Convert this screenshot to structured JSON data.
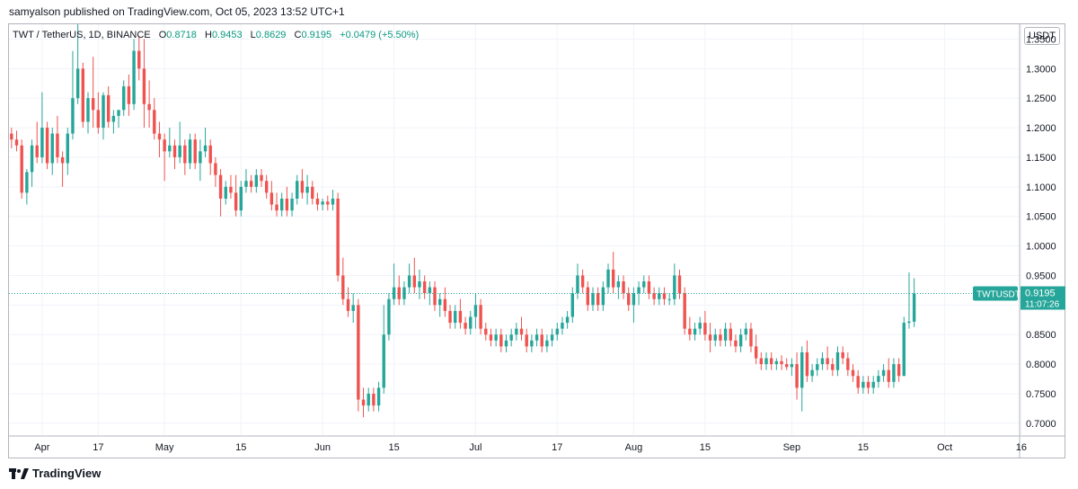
{
  "publisher_line": "samyalson published on TradingView.com, Oct 05, 2023 13:52 UTC+1",
  "legend": {
    "symbol": "TWT / TetherUS, 1D, BINANCE",
    "open_label": "O",
    "open": "0.8718",
    "high_label": "H",
    "high": "0.9453",
    "low_label": "L",
    "low": "0.8629",
    "close_label": "C",
    "close": "0.9195",
    "change": "+0.0479 (+5.50%)"
  },
  "currency": "USDT",
  "branding": "TradingView",
  "colors": {
    "up": "#26a69a",
    "down": "#ef5350",
    "grid": "#f0f3fa",
    "axis": "#b2b5be",
    "last_price": "#26a69a"
  },
  "chart_data": {
    "type": "candlestick",
    "symbol": "TWTUSDT",
    "last_price": "0.9195",
    "countdown": "11:07:26",
    "ylim": [
      0.68,
      1.375
    ],
    "y_ticks": [
      "1.3500",
      "1.3000",
      "1.2500",
      "1.2000",
      "1.1500",
      "1.1000",
      "1.0500",
      "1.0000",
      "0.9500",
      "0.9000",
      "0.8500",
      "0.8000",
      "0.7500",
      "0.7000"
    ],
    "x_ticks": [
      {
        "label": "Apr",
        "day": 6
      },
      {
        "label": "17",
        "day": 17
      },
      {
        "label": "May",
        "day": 30
      },
      {
        "label": "15",
        "day": 45
      },
      {
        "label": "Jun",
        "day": 61
      },
      {
        "label": "15",
        "day": 75
      },
      {
        "label": "Jul",
        "day": 91
      },
      {
        "label": "17",
        "day": 107
      },
      {
        "label": "Aug",
        "day": 122
      },
      {
        "label": "15",
        "day": 136
      },
      {
        "label": "Sep",
        "day": 153
      },
      {
        "label": "15",
        "day": 167
      },
      {
        "label": "Oct",
        "day": 183
      },
      {
        "label": "16",
        "day": 198
      }
    ],
    "day_range": [
      -0.5,
      197.5
    ],
    "start_date": "2023-03-31",
    "candles": [
      [
        1.19,
        1.2,
        1.165,
        1.18
      ],
      [
        1.18,
        1.195,
        1.16,
        1.17
      ],
      [
        1.17,
        1.18,
        1.08,
        1.09
      ],
      [
        1.09,
        1.13,
        1.07,
        1.125
      ],
      [
        1.125,
        1.18,
        1.1,
        1.17
      ],
      [
        1.17,
        1.21,
        1.14,
        1.15
      ],
      [
        1.15,
        1.26,
        1.14,
        1.2
      ],
      [
        1.2,
        1.21,
        1.13,
        1.14
      ],
      [
        1.14,
        1.2,
        1.12,
        1.19
      ],
      [
        1.19,
        1.22,
        1.14,
        1.15
      ],
      [
        1.15,
        1.16,
        1.1,
        1.14
      ],
      [
        1.14,
        1.2,
        1.12,
        1.19
      ],
      [
        1.19,
        1.33,
        1.18,
        1.25
      ],
      [
        1.25,
        1.375,
        1.24,
        1.3
      ],
      [
        1.3,
        1.31,
        1.2,
        1.21
      ],
      [
        1.21,
        1.26,
        1.19,
        1.25
      ],
      [
        1.25,
        1.32,
        1.2,
        1.23
      ],
      [
        1.23,
        1.26,
        1.19,
        1.2
      ],
      [
        1.2,
        1.26,
        1.18,
        1.255
      ],
      [
        1.255,
        1.27,
        1.2,
        1.21
      ],
      [
        1.21,
        1.23,
        1.19,
        1.22
      ],
      [
        1.22,
        1.23,
        1.2,
        1.23
      ],
      [
        1.23,
        1.28,
        1.22,
        1.27
      ],
      [
        1.27,
        1.29,
        1.22,
        1.24
      ],
      [
        1.24,
        1.35,
        1.23,
        1.33
      ],
      [
        1.33,
        1.355,
        1.28,
        1.3
      ],
      [
        1.3,
        1.35,
        1.2,
        1.24
      ],
      [
        1.24,
        1.28,
        1.2,
        1.23
      ],
      [
        1.23,
        1.25,
        1.18,
        1.19
      ],
      [
        1.19,
        1.21,
        1.15,
        1.18
      ],
      [
        1.18,
        1.19,
        1.11,
        1.16
      ],
      [
        1.16,
        1.2,
        1.15,
        1.17
      ],
      [
        1.17,
        1.18,
        1.13,
        1.15
      ],
      [
        1.15,
        1.21,
        1.14,
        1.17
      ],
      [
        1.17,
        1.18,
        1.12,
        1.14
      ],
      [
        1.14,
        1.19,
        1.13,
        1.18
      ],
      [
        1.18,
        1.19,
        1.13,
        1.14
      ],
      [
        1.14,
        1.18,
        1.11,
        1.16
      ],
      [
        1.16,
        1.2,
        1.15,
        1.17
      ],
      [
        1.17,
        1.18,
        1.12,
        1.14
      ],
      [
        1.14,
        1.15,
        1.1,
        1.12
      ],
      [
        1.12,
        1.13,
        1.05,
        1.08
      ],
      [
        1.08,
        1.11,
        1.07,
        1.1
      ],
      [
        1.1,
        1.12,
        1.08,
        1.09
      ],
      [
        1.09,
        1.12,
        1.05,
        1.06
      ],
      [
        1.06,
        1.11,
        1.05,
        1.1
      ],
      [
        1.1,
        1.13,
        1.09,
        1.11
      ],
      [
        1.11,
        1.12,
        1.09,
        1.1
      ],
      [
        1.1,
        1.13,
        1.09,
        1.12
      ],
      [
        1.12,
        1.13,
        1.1,
        1.11
      ],
      [
        1.11,
        1.12,
        1.08,
        1.09
      ],
      [
        1.09,
        1.11,
        1.06,
        1.07
      ],
      [
        1.07,
        1.09,
        1.05,
        1.06
      ],
      [
        1.06,
        1.09,
        1.05,
        1.08
      ],
      [
        1.08,
        1.1,
        1.05,
        1.06
      ],
      [
        1.06,
        1.09,
        1.05,
        1.08
      ],
      [
        1.08,
        1.12,
        1.07,
        1.11
      ],
      [
        1.11,
        1.13,
        1.08,
        1.09
      ],
      [
        1.09,
        1.12,
        1.07,
        1.1
      ],
      [
        1.1,
        1.11,
        1.07,
        1.08
      ],
      [
        1.08,
        1.09,
        1.06,
        1.07
      ],
      [
        1.07,
        1.08,
        1.06,
        1.075
      ],
      [
        1.075,
        1.085,
        1.06,
        1.07
      ],
      [
        1.07,
        1.095,
        1.06,
        1.08
      ],
      [
        1.08,
        1.09,
        0.94,
        0.95
      ],
      [
        0.95,
        0.98,
        0.9,
        0.91
      ],
      [
        0.91,
        0.93,
        0.88,
        0.89
      ],
      [
        0.89,
        0.92,
        0.87,
        0.9
      ],
      [
        0.9,
        0.91,
        0.72,
        0.74
      ],
      [
        0.74,
        0.76,
        0.71,
        0.73
      ],
      [
        0.73,
        0.76,
        0.72,
        0.75
      ],
      [
        0.75,
        0.76,
        0.72,
        0.73
      ],
      [
        0.73,
        0.77,
        0.72,
        0.76
      ],
      [
        0.76,
        0.9,
        0.75,
        0.85
      ],
      [
        0.85,
        0.92,
        0.84,
        0.91
      ],
      [
        0.91,
        0.97,
        0.9,
        0.93
      ],
      [
        0.93,
        0.95,
        0.9,
        0.91
      ],
      [
        0.91,
        0.94,
        0.9,
        0.93
      ],
      [
        0.93,
        0.97,
        0.92,
        0.95
      ],
      [
        0.95,
        0.98,
        0.92,
        0.93
      ],
      [
        0.93,
        0.96,
        0.91,
        0.94
      ],
      [
        0.94,
        0.95,
        0.91,
        0.92
      ],
      [
        0.92,
        0.94,
        0.9,
        0.93
      ],
      [
        0.93,
        0.94,
        0.89,
        0.9
      ],
      [
        0.9,
        0.92,
        0.88,
        0.91
      ],
      [
        0.91,
        0.93,
        0.88,
        0.89
      ],
      [
        0.89,
        0.9,
        0.86,
        0.87
      ],
      [
        0.87,
        0.9,
        0.86,
        0.89
      ],
      [
        0.89,
        0.91,
        0.86,
        0.87
      ],
      [
        0.87,
        0.88,
        0.85,
        0.86
      ],
      [
        0.86,
        0.89,
        0.85,
        0.88
      ],
      [
        0.88,
        0.92,
        0.86,
        0.9
      ],
      [
        0.9,
        0.91,
        0.85,
        0.86
      ],
      [
        0.86,
        0.87,
        0.84,
        0.85
      ],
      [
        0.85,
        0.86,
        0.83,
        0.84
      ],
      [
        0.84,
        0.86,
        0.83,
        0.85
      ],
      [
        0.85,
        0.86,
        0.82,
        0.83
      ],
      [
        0.83,
        0.85,
        0.82,
        0.84
      ],
      [
        0.84,
        0.86,
        0.83,
        0.85
      ],
      [
        0.85,
        0.87,
        0.84,
        0.86
      ],
      [
        0.86,
        0.88,
        0.84,
        0.85
      ],
      [
        0.85,
        0.86,
        0.82,
        0.83
      ],
      [
        0.83,
        0.85,
        0.82,
        0.84
      ],
      [
        0.84,
        0.86,
        0.83,
        0.85
      ],
      [
        0.85,
        0.86,
        0.82,
        0.83
      ],
      [
        0.83,
        0.85,
        0.82,
        0.84
      ],
      [
        0.84,
        0.86,
        0.83,
        0.85
      ],
      [
        0.85,
        0.87,
        0.84,
        0.86
      ],
      [
        0.86,
        0.88,
        0.85,
        0.87
      ],
      [
        0.87,
        0.89,
        0.86,
        0.88
      ],
      [
        0.88,
        0.93,
        0.87,
        0.92
      ],
      [
        0.92,
        0.97,
        0.91,
        0.95
      ],
      [
        0.95,
        0.96,
        0.92,
        0.93
      ],
      [
        0.93,
        0.94,
        0.89,
        0.9
      ],
      [
        0.9,
        0.93,
        0.89,
        0.92
      ],
      [
        0.92,
        0.93,
        0.89,
        0.9
      ],
      [
        0.9,
        0.94,
        0.89,
        0.93
      ],
      [
        0.93,
        0.97,
        0.92,
        0.96
      ],
      [
        0.96,
        0.99,
        0.92,
        0.93
      ],
      [
        0.93,
        0.95,
        0.91,
        0.94
      ],
      [
        0.94,
        0.95,
        0.91,
        0.92
      ],
      [
        0.92,
        0.93,
        0.89,
        0.9
      ],
      [
        0.9,
        0.93,
        0.87,
        0.92
      ],
      [
        0.92,
        0.94,
        0.9,
        0.93
      ],
      [
        0.93,
        0.95,
        0.92,
        0.94
      ],
      [
        0.94,
        0.95,
        0.91,
        0.92
      ],
      [
        0.92,
        0.93,
        0.9,
        0.91
      ],
      [
        0.91,
        0.93,
        0.9,
        0.92
      ],
      [
        0.92,
        0.93,
        0.9,
        0.91
      ],
      [
        0.91,
        0.92,
        0.9,
        0.91
      ],
      [
        0.91,
        0.97,
        0.9,
        0.95
      ],
      [
        0.95,
        0.96,
        0.91,
        0.92
      ],
      [
        0.92,
        0.93,
        0.85,
        0.86
      ],
      [
        0.86,
        0.88,
        0.84,
        0.85
      ],
      [
        0.85,
        0.87,
        0.84,
        0.86
      ],
      [
        0.86,
        0.88,
        0.85,
        0.87
      ],
      [
        0.87,
        0.89,
        0.84,
        0.85
      ],
      [
        0.85,
        0.87,
        0.82,
        0.84
      ],
      [
        0.84,
        0.86,
        0.83,
        0.85
      ],
      [
        0.85,
        0.86,
        0.83,
        0.84
      ],
      [
        0.84,
        0.87,
        0.83,
        0.86
      ],
      [
        0.86,
        0.87,
        0.83,
        0.84
      ],
      [
        0.84,
        0.85,
        0.82,
        0.83
      ],
      [
        0.83,
        0.86,
        0.82,
        0.85
      ],
      [
        0.85,
        0.87,
        0.84,
        0.86
      ],
      [
        0.86,
        0.87,
        0.82,
        0.83
      ],
      [
        0.83,
        0.85,
        0.8,
        0.81
      ],
      [
        0.81,
        0.82,
        0.79,
        0.8
      ],
      [
        0.8,
        0.82,
        0.79,
        0.81
      ],
      [
        0.81,
        0.82,
        0.79,
        0.8
      ],
      [
        0.8,
        0.81,
        0.79,
        0.805
      ],
      [
        0.805,
        0.815,
        0.79,
        0.8
      ],
      [
        0.8,
        0.81,
        0.79,
        0.795
      ],
      [
        0.795,
        0.81,
        0.78,
        0.8
      ],
      [
        0.8,
        0.82,
        0.74,
        0.76
      ],
      [
        0.76,
        0.83,
        0.72,
        0.82
      ],
      [
        0.82,
        0.84,
        0.77,
        0.78
      ],
      [
        0.78,
        0.8,
        0.77,
        0.79
      ],
      [
        0.79,
        0.81,
        0.78,
        0.8
      ],
      [
        0.8,
        0.82,
        0.79,
        0.81
      ],
      [
        0.81,
        0.83,
        0.79,
        0.8
      ],
      [
        0.8,
        0.81,
        0.78,
        0.79
      ],
      [
        0.79,
        0.83,
        0.78,
        0.82
      ],
      [
        0.82,
        0.83,
        0.8,
        0.81
      ],
      [
        0.81,
        0.82,
        0.78,
        0.79
      ],
      [
        0.79,
        0.8,
        0.77,
        0.78
      ],
      [
        0.78,
        0.79,
        0.75,
        0.76
      ],
      [
        0.76,
        0.78,
        0.75,
        0.77
      ],
      [
        0.77,
        0.78,
        0.75,
        0.76
      ],
      [
        0.76,
        0.78,
        0.75,
        0.77
      ],
      [
        0.77,
        0.79,
        0.76,
        0.78
      ],
      [
        0.78,
        0.8,
        0.77,
        0.79
      ],
      [
        0.79,
        0.81,
        0.76,
        0.77
      ],
      [
        0.77,
        0.81,
        0.76,
        0.8
      ],
      [
        0.8,
        0.81,
        0.77,
        0.78
      ],
      [
        0.78,
        0.88,
        0.78,
        0.87
      ],
      [
        0.87,
        0.955,
        0.86,
        0.872
      ],
      [
        0.8718,
        0.9453,
        0.8629,
        0.9195
      ]
    ]
  }
}
